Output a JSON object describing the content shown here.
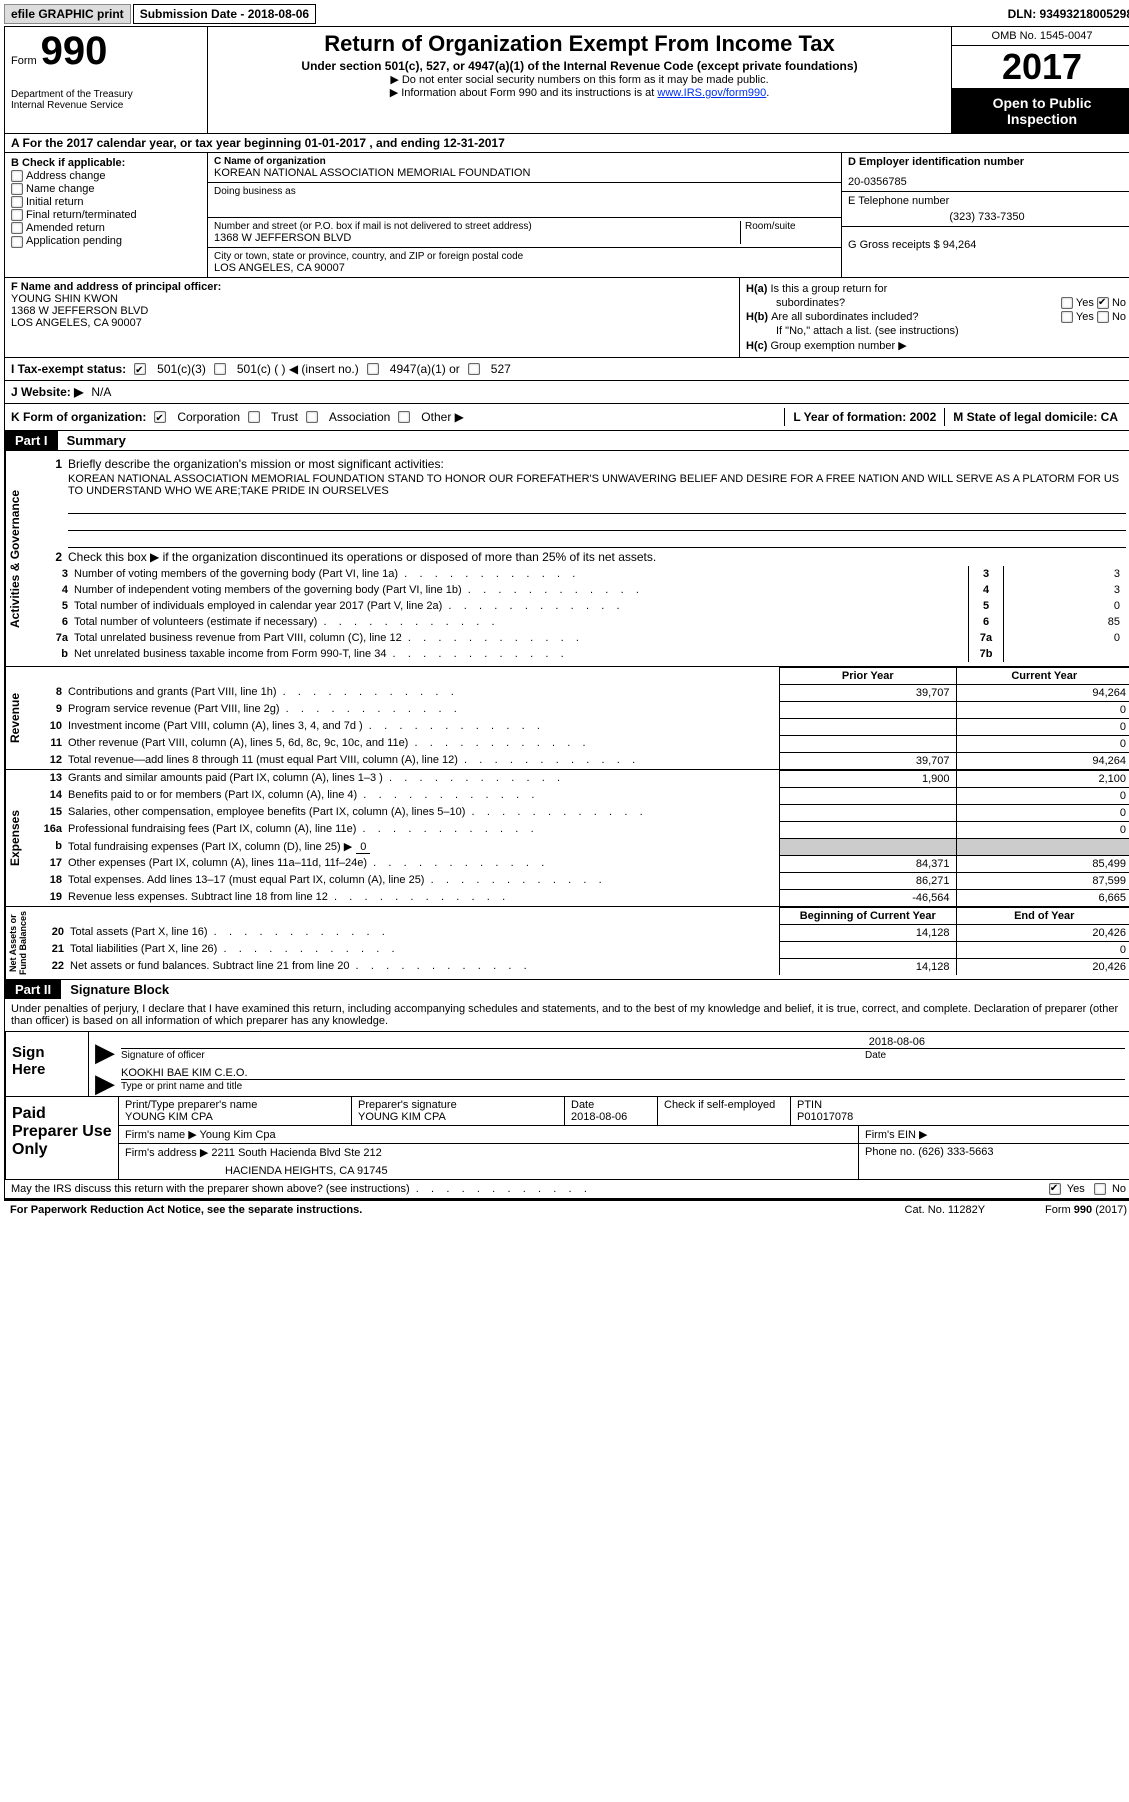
{
  "top": {
    "efile": "efile GRAPHIC print",
    "sub_date": "Submission Date - 2018-08-06",
    "dln": "DLN: 93493218005298"
  },
  "header": {
    "form_label": "Form",
    "form_num": "990",
    "dept1": "Department of the Treasury",
    "dept2": "Internal Revenue Service",
    "title": "Return of Organization Exempt From Income Tax",
    "sub": "Under section 501(c), 527, or 4947(a)(1) of the Internal Revenue Code (except private foundations)",
    "note1": "Do not enter social security numbers on this form as it may be made public.",
    "note2_pre": "Information about Form 990 and its instructions is at ",
    "note2_link": "www.IRS.gov/form990",
    "omb": "OMB No. 1545-0047",
    "year": "2017",
    "otp1": "Open to Public",
    "otp2": "Inspection"
  },
  "rowA": "A   For the 2017 calendar year, or tax year beginning 01-01-2017   , and ending 12-31-2017",
  "colB": {
    "hdr": "B Check if applicable:",
    "opts": [
      "Address change",
      "Name change",
      "Initial return",
      "Final return/terminated",
      "Amended return",
      "Application pending"
    ]
  },
  "colC": {
    "name_lbl": "C Name of organization",
    "name": "KOREAN NATIONAL ASSOCIATION MEMORIAL FOUNDATION",
    "dba_lbl": "Doing business as",
    "street_lbl": "Number and street (or P.O. box if mail is not delivered to street address)",
    "street": "1368 W JEFFERSON BLVD",
    "room_lbl": "Room/suite",
    "city_lbl": "City or town, state or province, country, and ZIP or foreign postal code",
    "city": "LOS ANGELES, CA  90007"
  },
  "colD": {
    "ein_lbl": "D Employer identification number",
    "ein": "20-0356785",
    "tel_lbl": "E Telephone number",
    "tel": "(323) 733-7350",
    "gross_lbl": "G Gross receipts $ 94,264"
  },
  "fbox": {
    "lbl": "F Name and address of principal officer:",
    "l1": "YOUNG SHIN KWON",
    "l2": "1368 W JEFFERSON BLVD",
    "l3": "LOS ANGELES, CA  90007"
  },
  "hbox": {
    "ha": "Is this a group return for",
    "ha2": "subordinates?",
    "hb": "Are all subordinates included?",
    "hnote": "If \"No,\" attach a list. (see instructions)",
    "hc": "Group exemption number ▶",
    "yes": "Yes",
    "no": "No"
  },
  "status": {
    "lbl": "I   Tax-exempt status:",
    "o1": "501(c)(3)",
    "o2": "501(c) (  ) ◀ (insert no.)",
    "o3": "4947(a)(1) or",
    "o4": "527"
  },
  "web": {
    "lbl": "J   Website: ▶",
    "val": "N/A"
  },
  "korg": {
    "lbl": "K Form of organization:",
    "o1": "Corporation",
    "o2": "Trust",
    "o3": "Association",
    "o4": "Other ▶",
    "yr": "L Year of formation: 2002",
    "st": "M State of legal domicile: CA"
  },
  "part1": {
    "hdr": "Part I",
    "title": "Summary",
    "l1_lbl": "Briefly describe the organization's mission or most significant activities:",
    "l1_txt": "KOREAN NATIONAL ASSOCIATION MEMORIAL FOUNDATION STAND TO HONOR OUR FOREFATHER'S UNWAVERING BELIEF AND DESIRE FOR A FREE NATION AND WILL SERVE AS A PLATORM FOR US TO UNDERSTAND WHO WE ARE;TAKE PRIDE IN OURSELVES",
    "l2": "Check this box ▶       if the organization discontinued its operations or disposed of more than 25% of its net assets.",
    "gov_lines": [
      {
        "n": "3",
        "t": "Number of voting members of the governing body (Part VI, line 1a)",
        "k": "3",
        "v": "3"
      },
      {
        "n": "4",
        "t": "Number of independent voting members of the governing body (Part VI, line 1b)",
        "k": "4",
        "v": "3"
      },
      {
        "n": "5",
        "t": "Total number of individuals employed in calendar year 2017 (Part V, line 2a)",
        "k": "5",
        "v": "0"
      },
      {
        "n": "6",
        "t": "Total number of volunteers (estimate if necessary)",
        "k": "6",
        "v": "85"
      },
      {
        "n": "7a",
        "t": "Total unrelated business revenue from Part VIII, column (C), line 12",
        "k": "7a",
        "v": "0"
      },
      {
        "n": "b",
        "t": "Net unrelated business taxable income from Form 990-T, line 34",
        "k": "7b",
        "v": ""
      }
    ],
    "col_hdr_prior": "Prior Year",
    "col_hdr_curr": "Current Year",
    "rev_lines": [
      {
        "n": "8",
        "t": "Contributions and grants (Part VIII, line 1h)",
        "p": "39,707",
        "c": "94,264"
      },
      {
        "n": "9",
        "t": "Program service revenue (Part VIII, line 2g)",
        "p": "",
        "c": "0"
      },
      {
        "n": "10",
        "t": "Investment income (Part VIII, column (A), lines 3, 4, and 7d )",
        "p": "",
        "c": "0"
      },
      {
        "n": "11",
        "t": "Other revenue (Part VIII, column (A), lines 5, 6d, 8c, 9c, 10c, and 11e)",
        "p": "",
        "c": "0"
      },
      {
        "n": "12",
        "t": "Total revenue—add lines 8 through 11 (must equal Part VIII, column (A), line 12)",
        "p": "39,707",
        "c": "94,264"
      }
    ],
    "exp_lines": [
      {
        "n": "13",
        "t": "Grants and similar amounts paid (Part IX, column (A), lines 1–3 )",
        "p": "1,900",
        "c": "2,100"
      },
      {
        "n": "14",
        "t": "Benefits paid to or for members (Part IX, column (A), line 4)",
        "p": "",
        "c": "0"
      },
      {
        "n": "15",
        "t": "Salaries, other compensation, employee benefits (Part IX, column (A), lines 5–10)",
        "p": "",
        "c": "0"
      },
      {
        "n": "16a",
        "t": "Professional fundraising fees (Part IX, column (A), line 11e)",
        "p": "",
        "c": "0"
      },
      {
        "n": "b",
        "t": "Total fundraising expenses (Part IX, column (D), line 25) ▶",
        "p": "gray",
        "c": "gray",
        "ul": "0"
      },
      {
        "n": "17",
        "t": "Other expenses (Part IX, column (A), lines 11a–11d, 11f–24e)",
        "p": "84,371",
        "c": "85,499"
      },
      {
        "n": "18",
        "t": "Total expenses. Add lines 13–17 (must equal Part IX, column (A), line 25)",
        "p": "86,271",
        "c": "87,599"
      },
      {
        "n": "19",
        "t": "Revenue less expenses. Subtract line 18 from line 12",
        "p": "-46,564",
        "c": "6,665"
      }
    ],
    "na_hdr_beg": "Beginning of Current Year",
    "na_hdr_end": "End of Year",
    "na_lines": [
      {
        "n": "20",
        "t": "Total assets (Part X, line 16)",
        "p": "14,128",
        "c": "20,426"
      },
      {
        "n": "21",
        "t": "Total liabilities (Part X, line 26)",
        "p": "",
        "c": "0"
      },
      {
        "n": "22",
        "t": "Net assets or fund balances. Subtract line 21 from line 20",
        "p": "14,128",
        "c": "20,426"
      }
    ],
    "vtab_gov": "Activities & Governance",
    "vtab_rev": "Revenue",
    "vtab_exp": "Expenses",
    "vtab_na": "Net Assets or\nFund Balances"
  },
  "part2": {
    "hdr": "Part II",
    "title": "Signature Block",
    "decl": "Under penalties of perjury, I declare that I have examined this return, including accompanying schedules and statements, and to the best of my knowledge and belief, it is true, correct, and complete. Declaration of preparer (other than officer) is based on all information of which preparer has any knowledge.",
    "sign_here": "Sign Here",
    "sig_off": "Signature of officer",
    "sig_date": "Date",
    "sig_date_val": "2018-08-06",
    "sig_name": "KOOKHI BAE KIM C.E.O.",
    "sig_name_lbl": "Type or print name and title",
    "paid": "Paid Preparer Use Only",
    "prep_name_lbl": "Print/Type preparer's name",
    "prep_name": "YOUNG KIM CPA",
    "prep_sig_lbl": "Preparer's signature",
    "prep_sig": "YOUNG KIM CPA",
    "prep_date_lbl": "Date",
    "prep_date": "2018-08-06",
    "prep_chk": "Check        if self-employed",
    "ptin_lbl": "PTIN",
    "ptin": "P01017078",
    "firm_name_lbl": "Firm's name     ▶",
    "firm_name": "Young Kim Cpa",
    "firm_ein_lbl": "Firm's EIN ▶",
    "firm_addr_lbl": "Firm's address ▶",
    "firm_addr1": "2211 South Hacienda Blvd Ste 212",
    "firm_addr2": "HACIENDA HEIGHTS, CA  91745",
    "phone_lbl": "Phone no. (626) 333-5663"
  },
  "footer": {
    "irs_q": "May the IRS discuss this return with the preparer shown above? (see instructions)",
    "pra": "For Paperwork Reduction Act Notice, see the separate instructions.",
    "cat": "Cat. No. 11282Y",
    "form": "Form 990 (2017)"
  }
}
